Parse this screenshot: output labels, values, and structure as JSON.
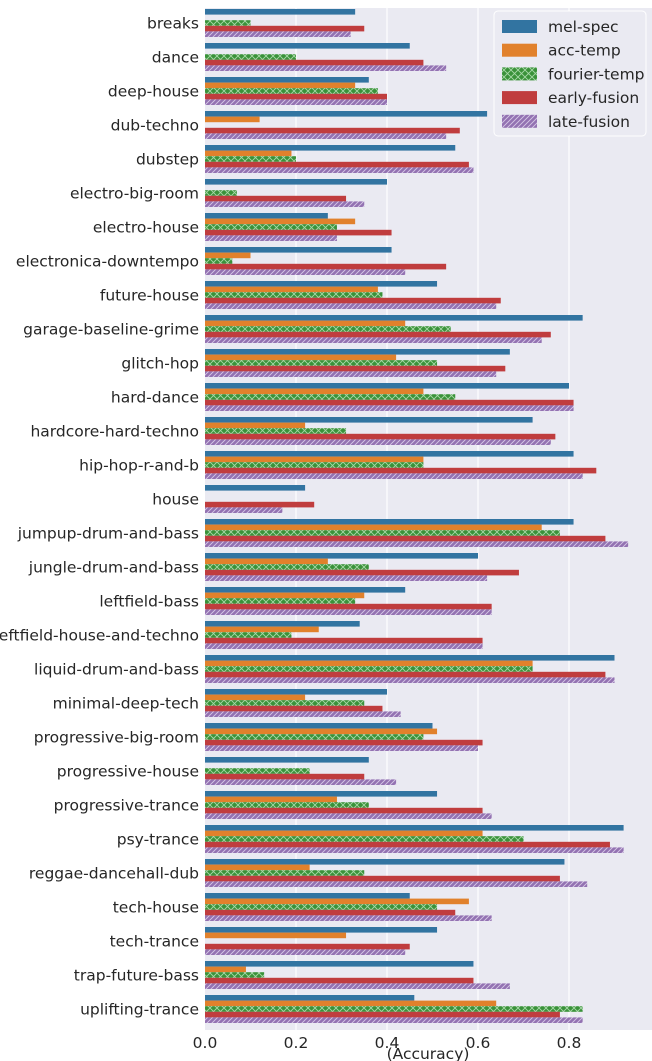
{
  "chart_data": {
    "type": "bar",
    "orientation": "horizontal",
    "xlabel": "(Accuracy)",
    "ylabel": "",
    "xlim": [
      0,
      0.97
    ],
    "xticks": [
      "0.0",
      "0.2",
      "0.4",
      "0.6",
      "0.8"
    ],
    "grid": true,
    "legend_position": "top-right",
    "categories": [
      "breaks",
      "dance",
      "deep-house",
      "dub-techno",
      "dubstep",
      "electro-big-room",
      "electro-house",
      "electronica-downtempo",
      "future-house",
      "garage-baseline-grime",
      "glitch-hop",
      "hard-dance",
      "hardcore-hard-techno",
      "hip-hop-r-and-b",
      "house",
      "jumpup-drum-and-bass",
      "jungle-drum-and-bass",
      "leftfield-bass",
      "leftfield-house-and-techno",
      "liquid-drum-and-bass",
      "minimal-deep-tech",
      "progressive-big-room",
      "progressive-house",
      "progressive-trance",
      "psy-trance",
      "reggae-dancehall-dub",
      "tech-house",
      "tech-trance",
      "trap-future-bass",
      "uplifting-trance"
    ],
    "series": [
      {
        "name": "mel-spec",
        "color": "#3274a1",
        "pattern": "solid",
        "values": [
          0.33,
          0.45,
          0.36,
          0.62,
          0.55,
          0.4,
          0.27,
          0.41,
          0.51,
          0.83,
          0.67,
          0.8,
          0.72,
          0.81,
          0.22,
          0.81,
          0.6,
          0.44,
          0.34,
          0.9,
          0.4,
          0.5,
          0.36,
          0.51,
          0.92,
          0.79,
          0.45,
          0.51,
          0.59,
          0.46
        ]
      },
      {
        "name": "acc-temp",
        "color": "#e1812c",
        "pattern": "solid",
        "values": [
          0.0,
          0.0,
          0.33,
          0.12,
          0.19,
          0.0,
          0.33,
          0.1,
          0.38,
          0.44,
          0.42,
          0.48,
          0.22,
          0.48,
          0.0,
          0.74,
          0.27,
          0.35,
          0.25,
          0.72,
          0.22,
          0.51,
          0.0,
          0.29,
          0.61,
          0.23,
          0.58,
          0.31,
          0.09,
          0.64
        ]
      },
      {
        "name": "fourier-temp",
        "color": "#3a923a",
        "pattern": "cross",
        "values": [
          0.1,
          0.2,
          0.38,
          0.0,
          0.2,
          0.07,
          0.29,
          0.06,
          0.39,
          0.54,
          0.51,
          0.55,
          0.31,
          0.48,
          0.0,
          0.78,
          0.36,
          0.33,
          0.19,
          0.72,
          0.35,
          0.48,
          0.23,
          0.36,
          0.7,
          0.35,
          0.51,
          0.0,
          0.13,
          0.83
        ]
      },
      {
        "name": "early-fusion",
        "color": "#c03d3e",
        "pattern": "solid",
        "values": [
          0.35,
          0.48,
          0.4,
          0.56,
          0.58,
          0.31,
          0.41,
          0.53,
          0.65,
          0.76,
          0.66,
          0.81,
          0.77,
          0.86,
          0.24,
          0.88,
          0.69,
          0.63,
          0.61,
          0.88,
          0.39,
          0.61,
          0.35,
          0.61,
          0.89,
          0.78,
          0.55,
          0.45,
          0.59,
          0.78
        ]
      },
      {
        "name": "late-fusion",
        "color": "#9372b2",
        "pattern": "hatch",
        "values": [
          0.32,
          0.53,
          0.4,
          0.53,
          0.59,
          0.35,
          0.29,
          0.44,
          0.64,
          0.74,
          0.64,
          0.81,
          0.76,
          0.83,
          0.17,
          0.93,
          0.62,
          0.63,
          0.61,
          0.9,
          0.43,
          0.6,
          0.42,
          0.63,
          0.92,
          0.84,
          0.63,
          0.44,
          0.67,
          0.83
        ]
      }
    ]
  }
}
